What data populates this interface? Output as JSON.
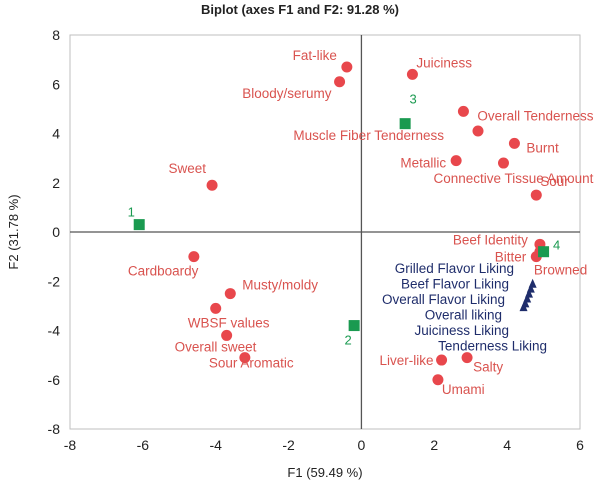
{
  "chart_data": {
    "type": "scatter",
    "title": "Biplot (axes F1 and F2: 91.28 %)",
    "xlabel": "F1 (59.49 %)",
    "ylabel": "F2 (31.78 %)",
    "xlim": [
      -8,
      6
    ],
    "ylim": [
      -8,
      8
    ],
    "xticks": [
      -8,
      -6,
      -4,
      -2,
      0,
      2,
      4,
      6
    ],
    "yticks": [
      -8,
      -6,
      -4,
      -2,
      0,
      2,
      4,
      6,
      8
    ],
    "colors": {
      "attributes": "#e8474c",
      "observations": "#1a9a50",
      "liking": "#1f2d6b",
      "attr_text": "#d9534f"
    },
    "attributes": [
      {
        "name": "Fat-like",
        "x": -0.4,
        "y": 6.7
      },
      {
        "name": "Bloody/serumy",
        "x": -0.6,
        "y": 6.1
      },
      {
        "name": "Juiciness",
        "x": 1.4,
        "y": 6.4
      },
      {
        "name": "Overall Tenderness",
        "x": 2.8,
        "y": 4.9
      },
      {
        "name": "Muscle Fiber Tenderness",
        "x": 3.2,
        "y": 4.1
      },
      {
        "name": "Burnt",
        "x": 4.2,
        "y": 3.6
      },
      {
        "name": "Metallic",
        "x": 2.6,
        "y": 2.9
      },
      {
        "name": "Connective Tissue Amount",
        "x": 3.9,
        "y": 2.8
      },
      {
        "name": "Sour",
        "x": 4.8,
        "y": 1.5
      },
      {
        "name": "Sweet",
        "x": -4.1,
        "y": 1.9
      },
      {
        "name": "Beef Identity",
        "x": 4.9,
        "y": -0.5
      },
      {
        "name": "Bitter",
        "x": 4.8,
        "y": -1.0
      },
      {
        "name": "Browned",
        "x": 4.9,
        "y": -0.8
      },
      {
        "name": "Cardboardy",
        "x": -4.6,
        "y": -1.0
      },
      {
        "name": "Musty/moldy",
        "x": -3.6,
        "y": -2.5
      },
      {
        "name": "WBSF values",
        "x": -4.0,
        "y": -3.1
      },
      {
        "name": "Overall sweet",
        "x": -3.7,
        "y": -4.2
      },
      {
        "name": "Sour Aromatic",
        "x": -3.2,
        "y": -5.1
      },
      {
        "name": "Liver-like",
        "x": 2.2,
        "y": -5.2
      },
      {
        "name": "Salty",
        "x": 2.9,
        "y": -5.1
      },
      {
        "name": "Umami",
        "x": 2.1,
        "y": -6.0
      }
    ],
    "observations": [
      {
        "name": "1",
        "x": -6.1,
        "y": 0.3
      },
      {
        "name": "2",
        "x": -0.2,
        "y": -3.8
      },
      {
        "name": "3",
        "x": 1.2,
        "y": 4.4
      },
      {
        "name": "4",
        "x": 5.0,
        "y": -0.8
      }
    ],
    "liking": [
      {
        "name": "Grilled Flavor Liking",
        "x": 4.7,
        "y": -2.1
      },
      {
        "name": "Beef Flavor Liking",
        "x": 4.65,
        "y": -2.3
      },
      {
        "name": "Overall Flavor Liking",
        "x": 4.6,
        "y": -2.5
      },
      {
        "name": "Overall liking",
        "x": 4.55,
        "y": -2.7
      },
      {
        "name": "Juiciness Liking",
        "x": 4.5,
        "y": -2.9
      },
      {
        "name": "Tenderness Liking",
        "x": 4.45,
        "y": -3.05
      }
    ]
  }
}
